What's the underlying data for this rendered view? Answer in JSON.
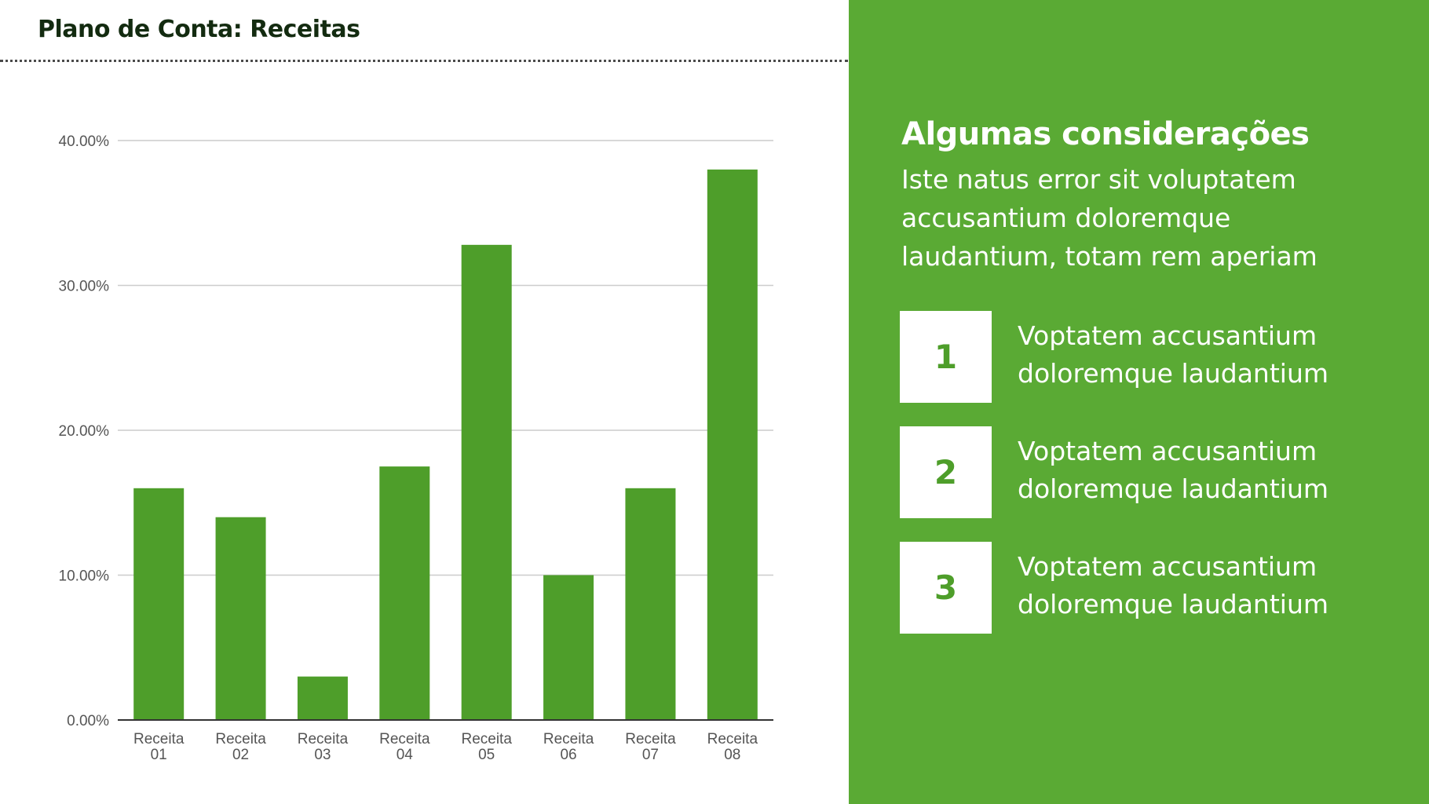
{
  "page": {
    "title": "Plano de Conta: Receitas"
  },
  "panel": {
    "heading": "Algumas considerações",
    "intro": "Iste natus error sit voluptatem accusantium doloremque laudantium, totam rem aperiam",
    "items": [
      {
        "number": "1",
        "text": "Voptatem accusantium doloremque laudantium"
      },
      {
        "number": "2",
        "text": "Voptatem accusantium doloremque laudantium"
      },
      {
        "number": "3",
        "text": "Voptatem accusantium doloremque laudantium"
      }
    ]
  },
  "colors": {
    "bar": "#4e9e2a",
    "panel": "#5aaa34",
    "title": "#132b10",
    "grid": "#cccccc",
    "axis": "#333333",
    "tick_text": "#555555"
  },
  "chart_data": {
    "type": "bar",
    "title": "",
    "xlabel": "",
    "ylabel": "",
    "categories": [
      [
        "Receita",
        "01"
      ],
      [
        "Receita",
        "02"
      ],
      [
        "Receita",
        "03"
      ],
      [
        "Receita",
        "04"
      ],
      [
        "Receita",
        "05"
      ],
      [
        "Receita",
        "06"
      ],
      [
        "Receita",
        "07"
      ],
      [
        "Receita",
        "08"
      ]
    ],
    "values": [
      16.0,
      14.0,
      3.0,
      17.5,
      32.8,
      10.0,
      16.0,
      38.0
    ],
    "ylim": [
      0,
      40
    ],
    "yticks": [
      0,
      10,
      20,
      30,
      40
    ],
    "ytick_labels": [
      "0.00%",
      "10.00%",
      "20.00%",
      "30.00%",
      "40.00%"
    ],
    "grid": true,
    "legend": "none"
  }
}
